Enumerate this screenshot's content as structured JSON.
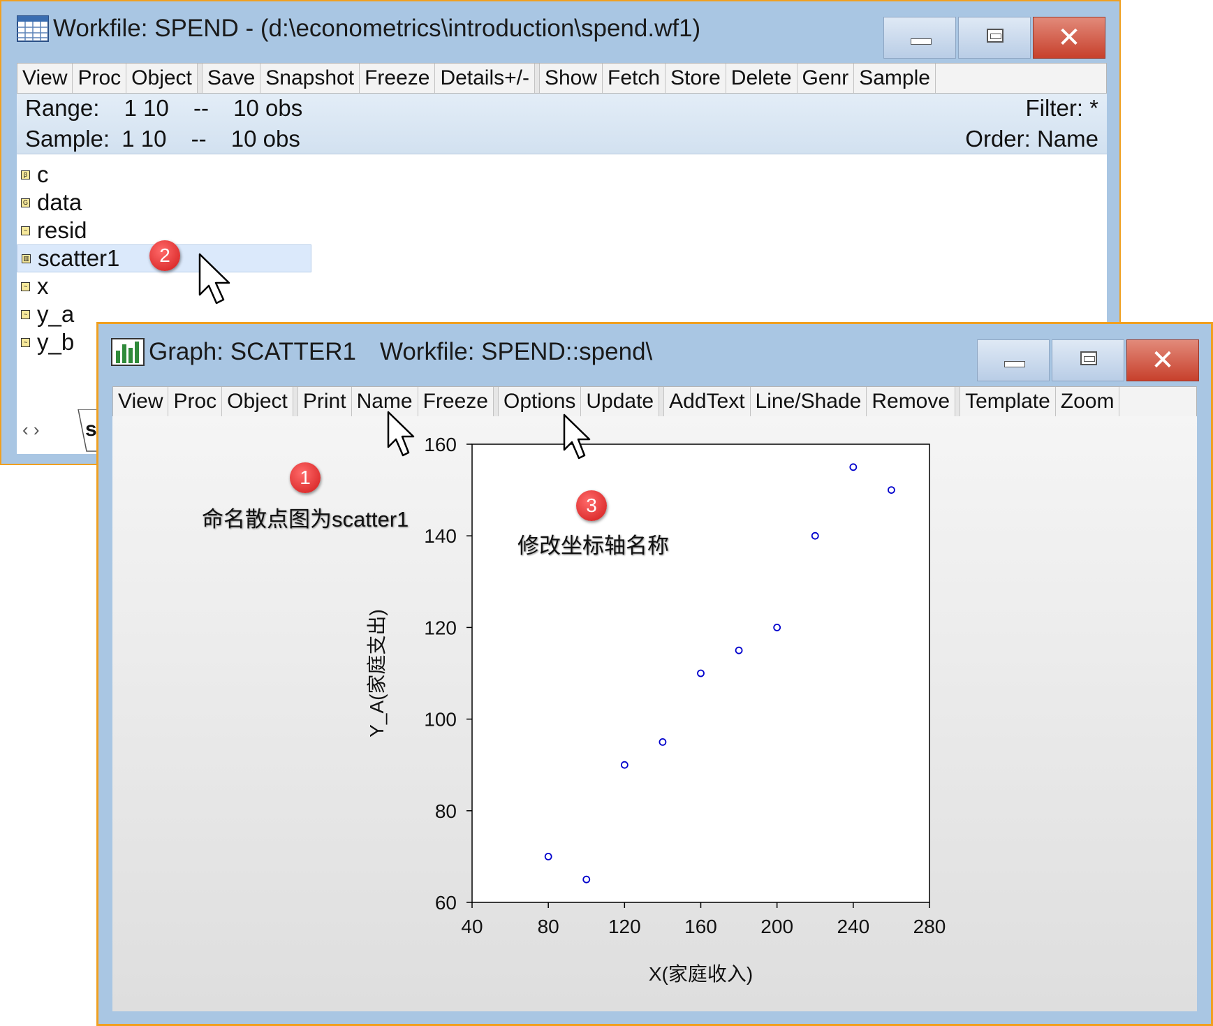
{
  "workfile_window": {
    "title": "Workfile: SPEND - (d:\\econometrics\\introduction\\spend.wf1)",
    "toolbar": [
      "View",
      "Proc",
      "Object",
      "|",
      "Save",
      "Snapshot",
      "Freeze",
      "Details+/-",
      "|",
      "Show",
      "Fetch",
      "Store",
      "Delete",
      "Genr",
      "Sample"
    ],
    "range_label": "Range:",
    "range_value": "1 10",
    "range_sep": "--",
    "range_obs": "10 obs",
    "sample_label": "Sample:",
    "sample_value": "1 10",
    "sample_sep": "--",
    "sample_obs": "10 obs",
    "filter": "Filter: *",
    "order": "Order: Name",
    "objects": [
      {
        "name": "c",
        "icon": "coef-icon",
        "glyph": "β"
      },
      {
        "name": "data",
        "icon": "group-icon",
        "glyph": "G"
      },
      {
        "name": "resid",
        "icon": "series-icon",
        "glyph": "~"
      },
      {
        "name": "scatter1",
        "icon": "graph-icon",
        "glyph": "▥",
        "selected": true
      },
      {
        "name": "x",
        "icon": "series-icon",
        "glyph": "~"
      },
      {
        "name": "y_a",
        "icon": "series-icon",
        "glyph": "~"
      },
      {
        "name": "y_b",
        "icon": "series-icon",
        "glyph": "~"
      }
    ],
    "tab_nav": "‹  ›",
    "tab_label": "s"
  },
  "graph_window": {
    "title_graph": "Graph: SCATTER1",
    "title_workfile": "Workfile: SPEND::spend\\",
    "toolbar": [
      "View",
      "Proc",
      "Object",
      "|",
      "Print",
      "Name",
      "Freeze",
      "|",
      "Options",
      "Update",
      "|",
      "AddText",
      "Line/Shade",
      "Remove",
      "|",
      "Template",
      "Zoom"
    ]
  },
  "annotations": {
    "badge1": "1",
    "label1": "命名散点图为scatter1",
    "badge2": "2",
    "badge3": "3",
    "label3": "修改坐标轴名称"
  },
  "chart_data": {
    "type": "scatter",
    "xlabel": "X(家庭收入)",
    "ylabel": "Y_A(家庭支出)",
    "xlim": [
      40,
      280
    ],
    "ylim": [
      60,
      160
    ],
    "xticks": [
      40,
      80,
      120,
      160,
      200,
      240,
      280
    ],
    "yticks": [
      60,
      80,
      100,
      120,
      140,
      160
    ],
    "points": [
      {
        "x": 80,
        "y": 70
      },
      {
        "x": 100,
        "y": 65
      },
      {
        "x": 120,
        "y": 90
      },
      {
        "x": 140,
        "y": 95
      },
      {
        "x": 160,
        "y": 110
      },
      {
        "x": 180,
        "y": 115
      },
      {
        "x": 200,
        "y": 120
      },
      {
        "x": 220,
        "y": 140
      },
      {
        "x": 240,
        "y": 155
      },
      {
        "x": 260,
        "y": 150
      }
    ],
    "marker_color": "#0000cc"
  }
}
